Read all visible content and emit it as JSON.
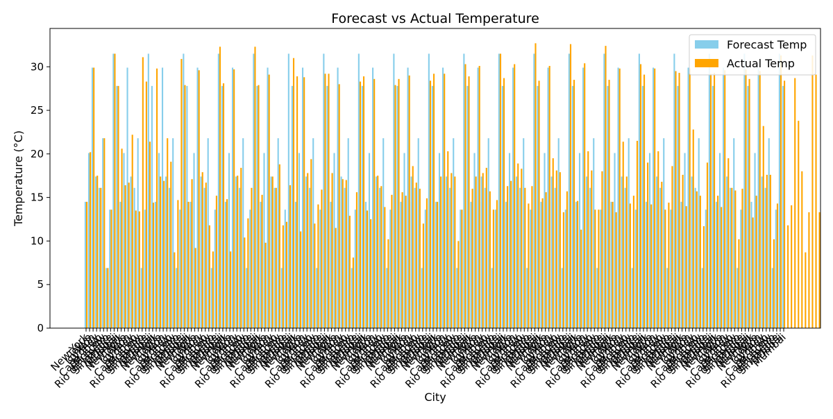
{
  "chart_data": {
    "type": "bar",
    "title": "Forecast vs Actual Temperature",
    "xlabel": "City",
    "ylabel": "Temperature (°C)",
    "ylim": [
      0,
      34.4
    ],
    "yticks": [
      0,
      5,
      10,
      15,
      20,
      25,
      30
    ],
    "grid": false,
    "legend_position": "top-right",
    "city_cycle": [
      "New York",
      "Tokyo",
      "London",
      "Sydney",
      "Cape Town",
      "Moscow",
      "Rio de Janeiro",
      "Singapore",
      "Dubai",
      "Mumbai"
    ],
    "series": [
      {
        "name": "Forecast Temp",
        "color": "#87ceeb",
        "values": [
          14.5,
          20.1,
          29.9,
          17.4,
          16.1,
          21.8,
          6.9,
          13.6,
          31.5,
          27.8,
          14.5,
          20.1,
          29.9,
          17.4,
          16.1,
          21.8,
          6.9,
          13.6,
          31.5,
          27.8,
          14.5,
          20.1,
          29.9,
          17.4,
          16.1,
          21.8,
          6.9,
          13.6,
          31.5,
          27.8,
          14.5,
          20.1,
          29.9,
          17.4,
          16.1,
          21.8,
          6.9,
          13.6,
          31.5,
          27.8,
          14.5,
          20.1,
          29.9,
          17.4,
          16.1,
          21.8,
          6.9,
          13.6,
          31.5,
          27.8,
          14.5,
          20.1,
          29.9,
          17.4,
          16.1,
          21.8,
          6.9,
          13.6,
          31.5,
          27.8,
          14.5,
          20.1,
          29.9,
          17.4,
          16.1,
          21.8,
          6.9,
          13.6,
          31.5,
          27.8,
          14.5,
          20.1,
          29.9,
          17.4,
          16.1,
          21.8,
          6.9,
          13.6,
          31.5,
          27.8,
          14.5,
          20.1,
          29.9,
          17.4,
          16.1,
          21.8,
          6.9,
          13.6,
          31.5,
          27.8,
          14.5,
          20.1,
          29.9,
          17.4,
          16.1,
          21.8,
          6.9,
          13.6,
          31.5,
          27.8,
          14.5,
          20.1,
          29.9,
          17.4,
          16.1,
          21.8,
          6.9,
          13.6,
          31.5,
          27.8,
          14.5,
          20.1,
          29.9,
          17.4,
          16.1,
          21.8,
          6.9,
          13.6,
          31.5,
          27.8,
          14.5,
          20.1,
          29.9,
          17.4,
          16.1,
          21.8,
          6.9,
          13.6,
          31.5,
          27.8,
          14.5,
          20.1,
          29.9,
          17.4,
          16.1,
          21.8,
          6.9,
          13.6,
          31.5,
          27.8,
          14.5,
          20.1,
          29.9,
          17.4,
          16.1,
          21.8,
          6.9,
          13.6,
          31.5,
          27.8,
          14.5,
          20.1,
          29.9,
          17.4,
          16.1,
          21.8,
          6.9,
          13.6,
          31.5,
          27.8,
          14.5,
          20.1,
          29.9,
          17.4,
          16.1,
          21.8,
          6.9,
          13.6,
          31.5,
          27.8,
          14.5,
          20.1,
          29.9,
          17.4,
          16.1,
          21.8,
          6.9,
          13.6,
          31.5,
          27.8,
          14.5,
          20.1,
          29.9,
          17.4,
          16.1,
          21.8,
          6.9,
          13.6,
          31.5,
          27.8,
          14.5,
          20.1,
          29.9,
          17.4,
          16.1,
          21.8,
          6.9,
          13.6,
          31.5,
          27.8
        ]
      },
      {
        "name": "Actual Temp",
        "color": "#ffa500",
        "values": [
          14.5,
          20.2,
          29.9,
          17.5,
          16.1,
          21.8,
          6.9,
          13.6,
          31.5,
          27.8,
          20.6,
          16.4,
          16.7,
          22.2,
          13.5,
          13.4,
          31.1,
          28.3,
          21.4,
          14.4,
          29.8,
          17.4,
          16.9,
          21.8,
          19.1,
          8.7,
          14.7,
          30.9,
          27.9,
          14.5,
          17.1,
          9.2,
          29.6,
          17.9,
          16.7,
          11.8,
          8.8,
          15.2,
          32.3,
          28.1,
          14.8,
          8.8,
          29.7,
          17.5,
          18.4,
          10.4,
          12.6,
          16.1,
          32.3,
          27.9,
          15.3,
          9.8,
          29.1,
          17.4,
          16.1,
          18.8,
          11.8,
          12.2,
          16.4,
          31.0,
          28.9,
          11.1,
          28.8,
          17.8,
          19.4,
          12.0,
          14.2,
          15.9,
          29.2,
          29.2,
          17.8,
          11.5,
          28.0,
          17.1,
          17.0,
          12.9,
          8.1,
          15.6,
          28.3,
          28.9,
          13.5,
          12.5,
          28.6,
          17.5,
          16.3,
          13.9,
          10.2,
          15.3,
          27.9,
          28.6,
          15.6,
          15.2,
          29.0,
          18.6,
          16.7,
          16.0,
          12.0,
          14.9,
          28.4,
          29.2,
          14.5,
          17.4,
          29.2,
          20.3,
          17.8,
          17.4,
          10.0,
          13.6,
          30.3,
          28.9,
          16.0,
          17.4,
          30.1,
          17.8,
          18.4,
          15.7,
          13.6,
          14.7,
          31.5,
          28.7,
          16.3,
          16.9,
          30.3,
          18.9,
          18.3,
          16.1,
          14.3,
          16.3,
          32.7,
          28.4,
          14.9,
          15.6,
          30.1,
          19.5,
          18.1,
          17.9,
          13.3,
          15.7,
          32.6,
          28.5,
          14.6,
          11.3,
          30.4,
          20.3,
          18.1,
          13.6,
          13.6,
          18.0,
          32.4,
          28.5,
          14.5,
          13.3,
          29.8,
          21.4,
          17.4,
          14.3,
          15.2,
          21.5,
          30.3,
          29.1,
          19.0,
          14.2,
          29.8,
          20.3,
          16.8,
          13.6,
          14.4,
          18.6,
          29.5,
          29.3,
          17.6,
          14.0,
          29.8,
          22.8,
          15.7,
          15.2,
          11.7,
          19.0,
          29.2,
          29.3,
          15.2,
          13.9,
          29.6,
          19.5,
          16.1,
          15.8,
          10.2,
          16.0,
          29.7,
          28.6,
          12.7,
          15.2,
          29.5,
          23.2,
          17.6,
          17.6,
          10.2,
          14.3,
          31.3,
          28.4,
          11.8,
          14.1,
          28.7,
          23.8,
          18.0,
          8.7,
          13.3,
          31.3,
          29.1,
          13.3
        ]
      }
    ]
  }
}
